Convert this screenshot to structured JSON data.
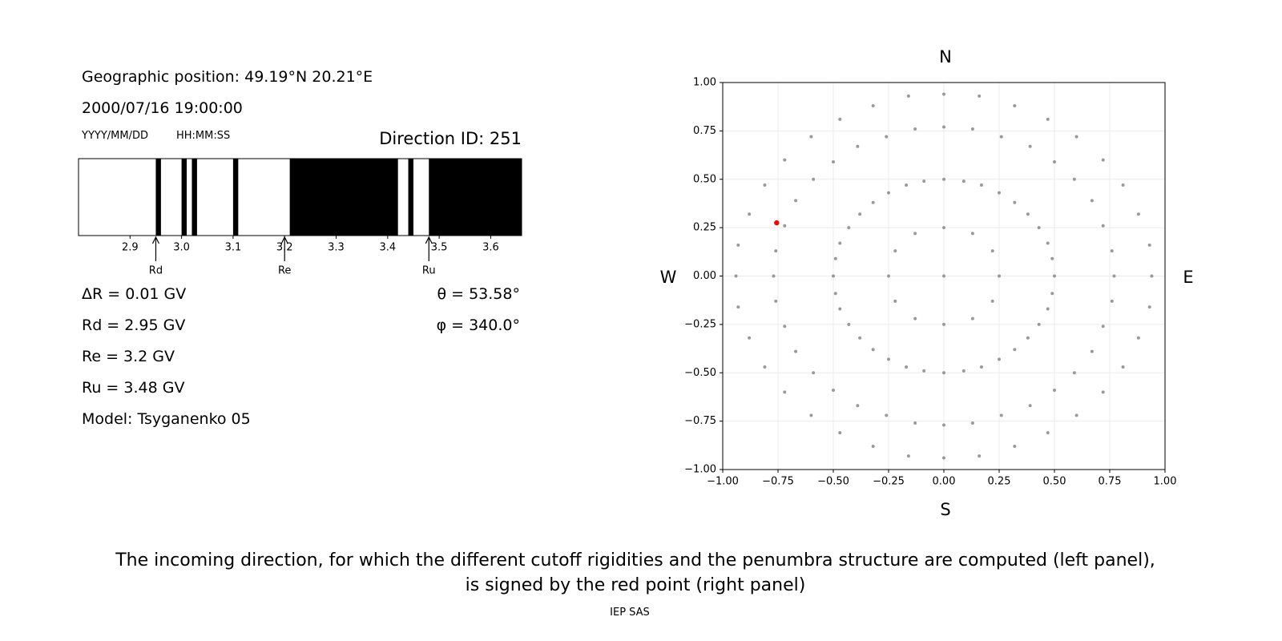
{
  "left_panel": {
    "position": "Geographic position: 49.19°N 20.21°E",
    "datetime": "2000/07/16 19:00:00",
    "date_format": "YYYY/MM/DD",
    "time_format": "HH:MM:SS",
    "direction": "Direction ID: 251",
    "lines": [
      "ΔR = 0.01 GV",
      "Rd = 2.95 GV",
      "Re = 3.2 GV",
      "Ru = 3.48 GV",
      "Model: Tsyganenko 05"
    ],
    "angles": [
      "θ = 53.58°",
      "φ = 340.0°"
    ]
  },
  "chart_data": [
    {
      "type": "penumbra",
      "color": "#000000",
      "forbidden": [
        [
          2.95,
          2.96
        ],
        [
          3.0,
          3.01
        ],
        [
          3.02,
          3.03
        ],
        [
          3.1,
          3.11
        ],
        [
          3.21,
          3.42
        ],
        [
          3.44,
          3.45
        ],
        [
          3.48,
          3.66
        ]
      ],
      "xlim": [
        2.8,
        3.66
      ],
      "xticks": [
        2.9,
        {
          "value": 3,
          "label": "3.0"
        },
        3.1,
        3.2,
        3.3,
        3.4,
        3.5,
        3.6
      ],
      "markers": [
        {
          "label": "Rd",
          "value": 2.95
        },
        {
          "label": "Re",
          "value": 3.2
        },
        {
          "label": "Ru",
          "value": 3.48
        }
      ]
    },
    {
      "type": "scatter",
      "grid": true,
      "top_label": "N",
      "bottom_label": "S",
      "left_label": "W",
      "right_label": "E",
      "xlim": [
        -1,
        1
      ],
      "ylim": [
        -1,
        1
      ],
      "xticks": [
        {
          "value": -1,
          "label": "−1.00"
        },
        {
          "value": -0.75,
          "label": "−0.75"
        },
        {
          "value": -0.5,
          "label": "−0.50"
        },
        {
          "value": -0.25,
          "label": "−0.25"
        },
        {
          "value": 0,
          "label": "0.00"
        },
        {
          "value": 0.25,
          "label": "0.25"
        },
        {
          "value": 0.5,
          "label": "0.50"
        },
        {
          "value": 0.75,
          "label": "0.75"
        },
        {
          "value": 1,
          "label": "1.00"
        }
      ],
      "yticks": [
        {
          "value": -1,
          "label": "−1.00"
        },
        {
          "value": -0.75,
          "label": "−0.75"
        },
        {
          "value": -0.5,
          "label": "−0.50"
        },
        {
          "value": -0.25,
          "label": "−0.25"
        },
        {
          "value": 0,
          "label": "0.00"
        },
        {
          "value": 0.25,
          "label": "0.25"
        },
        {
          "value": 0.5,
          "label": "0.50"
        },
        {
          "value": 0.75,
          "label": "0.75"
        },
        {
          "value": 1,
          "label": "1.00"
        }
      ],
      "series": [
        {
          "color": "#999999",
          "x": [
            0,
            0.25,
            0.22,
            0.13,
            0,
            -0.13,
            -0.22,
            -0.25,
            -0.22,
            -0.13,
            0,
            0.13,
            0.22,
            0.5,
            0.77,
            0.94,
            0.49,
            0.76,
            0.93,
            0.47,
            0.72,
            0.88,
            0.43,
            0.67,
            0.81,
            0.38,
            0.59,
            0.72,
            0.32,
            0.5,
            0.6,
            0.25,
            0.39,
            0.47,
            0.17,
            0.26,
            0.32,
            0.09,
            0.13,
            0.16,
            0,
            0,
            0,
            -0.09,
            -0.13,
            -0.16,
            -0.17,
            -0.26,
            -0.32,
            -0.25,
            -0.39,
            -0.47,
            -0.32,
            -0.5,
            -0.6,
            -0.38,
            -0.59,
            -0.72,
            -0.43,
            -0.67,
            -0.81,
            -0.47,
            -0.72,
            -0.88,
            -0.49,
            -0.76,
            -0.93,
            -0.5,
            -0.77,
            -0.94,
            -0.49,
            -0.76,
            -0.93,
            -0.47,
            -0.72,
            -0.88,
            -0.43,
            -0.67,
            -0.81,
            -0.38,
            -0.59,
            -0.72,
            -0.32,
            -0.5,
            -0.6,
            -0.25,
            -0.39,
            -0.47,
            -0.17,
            -0.26,
            -0.32,
            -0.09,
            -0.13,
            -0.16,
            0,
            0,
            0,
            0.09,
            0.13,
            0.16,
            0.17,
            0.26,
            0.32,
            0.25,
            0.39,
            0.47,
            0.32,
            0.5,
            0.6,
            0.38,
            0.59,
            0.72,
            0.43,
            0.67,
            0.81,
            0.47,
            0.72,
            0.88,
            0.49,
            0.76,
            0.93
          ],
          "y": [
            0,
            0,
            0.13,
            0.22,
            0.25,
            0.22,
            0.13,
            0,
            -0.13,
            -0.22,
            -0.25,
            -0.22,
            -0.13,
            0,
            0,
            0,
            0.09,
            0.13,
            0.16,
            0.17,
            0.26,
            0.32,
            0.25,
            0.39,
            0.47,
            0.32,
            0.5,
            0.6,
            0.38,
            0.59,
            0.72,
            0.43,
            0.67,
            0.81,
            0.47,
            0.72,
            0.88,
            0.49,
            0.76,
            0.93,
            0.5,
            0.77,
            0.94,
            0.49,
            0.76,
            0.93,
            0.47,
            0.72,
            0.88,
            0.43,
            0.67,
            0.81,
            0.38,
            0.59,
            0.72,
            0.32,
            0.5,
            0.6,
            0.25,
            0.39,
            0.47,
            0.17,
            0.26,
            0.32,
            0.09,
            0.13,
            0.16,
            0,
            0,
            0,
            -0.09,
            -0.13,
            -0.16,
            -0.17,
            -0.26,
            -0.32,
            -0.25,
            -0.39,
            -0.47,
            -0.32,
            -0.5,
            -0.6,
            -0.38,
            -0.59,
            -0.72,
            -0.43,
            -0.67,
            -0.81,
            -0.47,
            -0.72,
            -0.88,
            -0.49,
            -0.76,
            -0.93,
            -0.5,
            -0.77,
            -0.94,
            -0.49,
            -0.76,
            -0.93,
            -0.47,
            -0.72,
            -0.88,
            -0.43,
            -0.67,
            -0.81,
            -0.38,
            -0.59,
            -0.72,
            -0.32,
            -0.5,
            -0.6,
            -0.25,
            -0.39,
            -0.47,
            -0.17,
            -0.26,
            -0.32,
            -0.09,
            -0.13,
            -0.16
          ]
        },
        {
          "color": "#ff0000",
          "x": [
            -0.756
          ],
          "y": [
            0.275
          ]
        }
      ]
    }
  ],
  "caption": [
    "The incoming direction, for which the different cutoff rigidities and the penumbra structure are computed (left panel),",
    "is signed by the red point (right panel)"
  ],
  "footer": "IEP SAS"
}
